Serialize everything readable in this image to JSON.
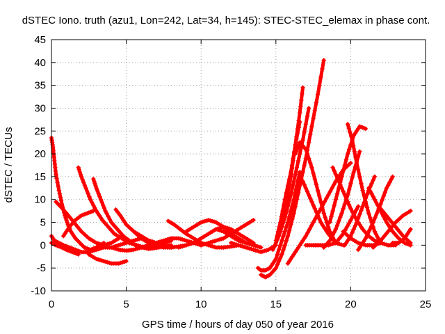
{
  "chart_data": {
    "type": "scatter",
    "title": "dSTEC Iono. truth (azu1, Lon=242, Lat=34, h=145): STEC-STEC_elemax in phase cont.",
    "xlabel": "GPS time / hours of day 050 of year 2016",
    "ylabel": "dSTEC  / TECUs",
    "xlim": [
      0,
      25
    ],
    "ylim": [
      -10,
      45
    ],
    "x_ticks": [
      0,
      5,
      10,
      15,
      20,
      25
    ],
    "y_ticks": [
      -10,
      -5,
      0,
      5,
      10,
      15,
      20,
      25,
      30,
      35,
      40,
      45
    ],
    "grid": true,
    "legend": "none",
    "marker": "plus",
    "colors": {
      "series": "#ff0000",
      "grid": "#a0a0a0",
      "axis": "#000000"
    },
    "series": [
      {
        "x": [
          0.0,
          0.1,
          0.2,
          0.3,
          0.5,
          0.7,
          0.9,
          1.1,
          1.3,
          1.6,
          1.9,
          2.2,
          2.6,
          3.0,
          3.5
        ],
        "y": [
          23.5,
          21.5,
          18.5,
          15.5,
          12.0,
          9.0,
          6.5,
          4.5,
          3.0,
          1.5,
          0.5,
          -0.5,
          -1.0,
          -0.5,
          0.5
        ]
      },
      {
        "x": [
          0.3,
          0.6,
          1.0,
          1.5,
          2.0,
          2.5,
          3.0,
          3.5,
          4.0,
          4.5
        ],
        "y": [
          9.5,
          8.5,
          7.0,
          5.0,
          3.0,
          1.5,
          0.5,
          0.0,
          0.5,
          1.5
        ]
      },
      {
        "x": [
          0.0,
          0.2,
          0.5,
          0.8,
          1.2,
          1.6,
          2.0,
          2.5,
          3.0,
          3.5,
          4.0,
          4.5,
          5.0,
          5.5,
          6.0,
          6.5,
          7.0,
          7.5,
          8.0
        ],
        "y": [
          2.0,
          1.0,
          0.5,
          0.0,
          -0.5,
          -1.0,
          -1.5,
          -1.5,
          -1.0,
          -0.5,
          -0.5,
          0.0,
          0.5,
          1.0,
          1.5,
          1.0,
          0.5,
          0.5,
          1.0
        ]
      },
      {
        "x": [
          0.0,
          0.3,
          0.7,
          1.0,
          1.4,
          1.8
        ],
        "y": [
          0.5,
          0.0,
          -0.5,
          -1.0,
          -1.5,
          -2.0
        ]
      },
      {
        "x": [
          0.8,
          1.2,
          1.6,
          2.0,
          2.4,
          2.8
        ],
        "y": [
          2.0,
          4.0,
          5.5,
          6.5,
          7.0,
          7.5
        ]
      },
      {
        "x": [
          1.8,
          2.0,
          2.3,
          2.6,
          3.0,
          3.4,
          3.8,
          4.2,
          4.7,
          5.2,
          5.7,
          6.2,
          6.8,
          7.4,
          8.0
        ],
        "y": [
          17.0,
          15.0,
          12.5,
          10.0,
          7.5,
          5.5,
          4.0,
          2.5,
          1.5,
          0.5,
          0.0,
          -0.5,
          -0.5,
          -0.3,
          0.0
        ]
      },
      {
        "x": [
          2.8,
          3.0,
          3.3,
          3.6,
          4.0,
          4.4,
          4.8,
          5.2,
          5.6,
          6.0,
          6.5,
          7.0,
          7.5
        ],
        "y": [
          14.5,
          12.5,
          10.0,
          7.5,
          5.0,
          3.5,
          2.0,
          1.0,
          0.0,
          -0.5,
          -0.8,
          -0.6,
          -0.3
        ]
      },
      {
        "x": [
          2.5,
          3.0,
          3.5,
          4.0,
          4.5,
          5.0
        ],
        "y": [
          -2.0,
          -3.0,
          -3.5,
          -4.0,
          -4.0,
          -3.5
        ]
      },
      {
        "x": [
          4.3,
          4.6,
          5.0,
          5.5,
          6.0,
          6.5,
          7.0,
          7.5,
          8.0,
          8.5,
          9.0
        ],
        "y": [
          7.8,
          6.5,
          4.5,
          3.0,
          1.5,
          0.5,
          0.0,
          -0.5,
          -0.5,
          -0.3,
          0.0
        ]
      },
      {
        "x": [
          4.0,
          4.5,
          5.0,
          5.5,
          6.0,
          6.5,
          7.0,
          7.5,
          8.0,
          8.5,
          9.0,
          9.5,
          10.0
        ],
        "y": [
          -0.5,
          -1.0,
          -1.2,
          -1.0,
          -0.5,
          0.0,
          0.5,
          1.0,
          1.5,
          1.5,
          1.0,
          0.5,
          0.0
        ]
      },
      {
        "x": [
          5.0,
          5.5,
          6.0,
          6.5,
          7.0,
          7.5,
          8.0
        ],
        "y": [
          4.5,
          3.0,
          2.0,
          1.0,
          0.5,
          0.0,
          -0.5
        ]
      },
      {
        "x": [
          7.8,
          8.2,
          8.6,
          9.0,
          9.5,
          10.0,
          10.5,
          11.0,
          11.5,
          12.0,
          12.5
        ],
        "y": [
          5.3,
          4.5,
          3.5,
          2.5,
          1.5,
          0.5,
          0.0,
          -0.5,
          -0.5,
          -0.3,
          0.0
        ]
      },
      {
        "x": [
          8.5,
          9.0,
          9.5,
          10.0,
          10.5,
          11.0,
          11.5,
          12.0,
          12.5,
          13.0,
          13.5
        ],
        "y": [
          -0.5,
          0.0,
          0.5,
          1.5,
          2.5,
          3.5,
          4.0,
          3.5,
          2.5,
          1.5,
          0.5
        ]
      },
      {
        "x": [
          9.0,
          9.5,
          10.0,
          10.5,
          11.0,
          11.5,
          12.0,
          12.5,
          13.0,
          13.5,
          14.0
        ],
        "y": [
          3.0,
          4.0,
          5.0,
          5.5,
          5.0,
          4.0,
          2.5,
          1.5,
          0.5,
          0.0,
          -0.5
        ]
      },
      {
        "x": [
          10.0,
          10.5,
          11.0,
          11.5,
          12.0,
          12.5,
          13.0,
          13.5
        ],
        "y": [
          0.0,
          0.5,
          1.0,
          1.5,
          2.5,
          3.5,
          4.5,
          5.5
        ]
      },
      {
        "x": [
          11.0,
          11.5,
          12.0,
          12.5,
          13.0,
          13.5,
          14.0
        ],
        "y": [
          3.5,
          3.0,
          2.0,
          1.0,
          0.5,
          0.0,
          -0.5
        ]
      },
      {
        "x": [
          12.0,
          12.5,
          13.0,
          13.5,
          14.0,
          14.5,
          15.0
        ],
        "y": [
          0.5,
          0.0,
          -0.5,
          -1.0,
          -1.5,
          -1.0,
          0.0
        ]
      },
      {
        "x": [
          13.8,
          14.0,
          14.3,
          14.6,
          15.0,
          15.4,
          15.8,
          16.2,
          16.6
        ],
        "y": [
          -5.0,
          -5.5,
          -5.5,
          -5.0,
          -3.0,
          1.0,
          5.0,
          10.0,
          16.0
        ]
      },
      {
        "x": [
          14.0,
          14.3,
          14.6,
          15.0,
          15.4,
          15.8,
          16.2,
          16.6,
          17.0,
          17.4,
          17.8,
          18.2
        ],
        "y": [
          -6.5,
          -7.0,
          -6.5,
          -5.0,
          -2.0,
          2.0,
          7.0,
          13.0,
          19.0,
          26.0,
          33.0,
          40.5
        ]
      },
      {
        "x": [
          14.8,
          15.2,
          15.6,
          16.0,
          16.4,
          16.8,
          17.2
        ],
        "y": [
          -1.0,
          2.0,
          6.0,
          11.0,
          17.0,
          23.0,
          30.0
        ]
      },
      {
        "x": [
          15.0,
          15.3,
          15.6,
          16.0,
          16.3,
          16.6
        ],
        "y": [
          1.0,
          5.0,
          10.0,
          16.0,
          22.0,
          27.0
        ]
      },
      {
        "x": [
          15.3,
          15.6,
          16.0,
          16.3,
          16.6,
          16.8
        ],
        "y": [
          3.0,
          8.0,
          15.0,
          22.0,
          29.0,
          34.5
        ]
      },
      {
        "x": [
          15.8,
          16.2,
          16.6,
          17.0,
          17.5,
          18.0,
          18.5,
          19.0,
          19.5,
          20.0
        ],
        "y": [
          -4.0,
          -2.0,
          0.0,
          2.0,
          5.0,
          8.0,
          11.0,
          14.0,
          16.5,
          18.0
        ]
      },
      {
        "x": [
          16.3,
          16.6,
          17.0,
          17.4,
          17.8,
          18.2,
          18.6,
          19.0
        ],
        "y": [
          20.0,
          22.5,
          21.0,
          17.0,
          12.0,
          7.0,
          3.0,
          0.5
        ]
      },
      {
        "x": [
          16.8,
          17.2,
          17.6,
          18.0,
          18.5,
          19.0,
          19.5
        ],
        "y": [
          14.0,
          11.0,
          8.0,
          5.0,
          2.5,
          0.5,
          0.0
        ]
      },
      {
        "x": [
          17.0,
          17.5,
          18.0,
          18.5,
          19.0,
          19.5,
          20.0,
          20.5
        ],
        "y": [
          0.0,
          0.0,
          0.0,
          0.0,
          0.5,
          2.5,
          5.5,
          8.5
        ]
      },
      {
        "x": [
          18.2,
          18.6,
          19.0,
          19.4,
          19.8,
          20.2,
          20.6
        ],
        "y": [
          -0.5,
          1.0,
          3.5,
          7.0,
          11.0,
          16.0,
          20.5
        ]
      },
      {
        "x": [
          18.6,
          19.0,
          19.4,
          19.8,
          20.2,
          20.6,
          21.0
        ],
        "y": [
          5.0,
          10.0,
          15.0,
          20.0,
          24.0,
          26.0,
          25.5
        ]
      },
      {
        "x": [
          18.8,
          19.2,
          19.6,
          20.0,
          20.4,
          20.8,
          21.2,
          21.6,
          22.0,
          22.5,
          23.0
        ],
        "y": [
          17.0,
          14.0,
          11.0,
          8.0,
          5.5,
          3.5,
          2.0,
          1.0,
          0.5,
          0.0,
          0.0
        ]
      },
      {
        "x": [
          19.8,
          20.1,
          20.4,
          20.8,
          21.2,
          21.6,
          22.0
        ],
        "y": [
          26.5,
          23.0,
          18.0,
          12.0,
          7.0,
          3.0,
          0.5
        ]
      },
      {
        "x": [
          19.6,
          20.0,
          20.4,
          20.8,
          21.2,
          21.6
        ],
        "y": [
          0.0,
          2.0,
          5.0,
          8.5,
          12.0,
          15.0
        ]
      },
      {
        "x": [
          21.2,
          21.6,
          22.0,
          22.4,
          22.8,
          23.2,
          23.6,
          24.0
        ],
        "y": [
          12.5,
          10.0,
          7.5,
          5.0,
          3.0,
          1.5,
          0.5,
          0.0
        ]
      },
      {
        "x": [
          20.5,
          21.0,
          21.5,
          22.0,
          22.4,
          22.8
        ],
        "y": [
          -1.0,
          1.5,
          5.0,
          9.0,
          12.5,
          15.0
        ]
      },
      {
        "x": [
          21.5,
          22.0,
          22.5,
          23.0,
          23.5,
          24.0
        ],
        "y": [
          -0.5,
          1.0,
          3.0,
          5.0,
          6.5,
          7.5
        ]
      },
      {
        "x": [
          22.0,
          22.5,
          23.0,
          23.5,
          24.0
        ],
        "y": [
          8.0,
          6.0,
          4.0,
          2.0,
          0.5
        ]
      },
      {
        "x": [
          22.8,
          23.2,
          23.6,
          24.0
        ],
        "y": [
          0.5,
          0.5,
          1.5,
          3.5
        ]
      },
      {
        "x": [
          19.5,
          20.0,
          20.5,
          21.0,
          21.5,
          22.0
        ],
        "y": [
          3.0,
          1.5,
          0.5,
          0.0,
          0.0,
          0.5
        ]
      }
    ]
  }
}
